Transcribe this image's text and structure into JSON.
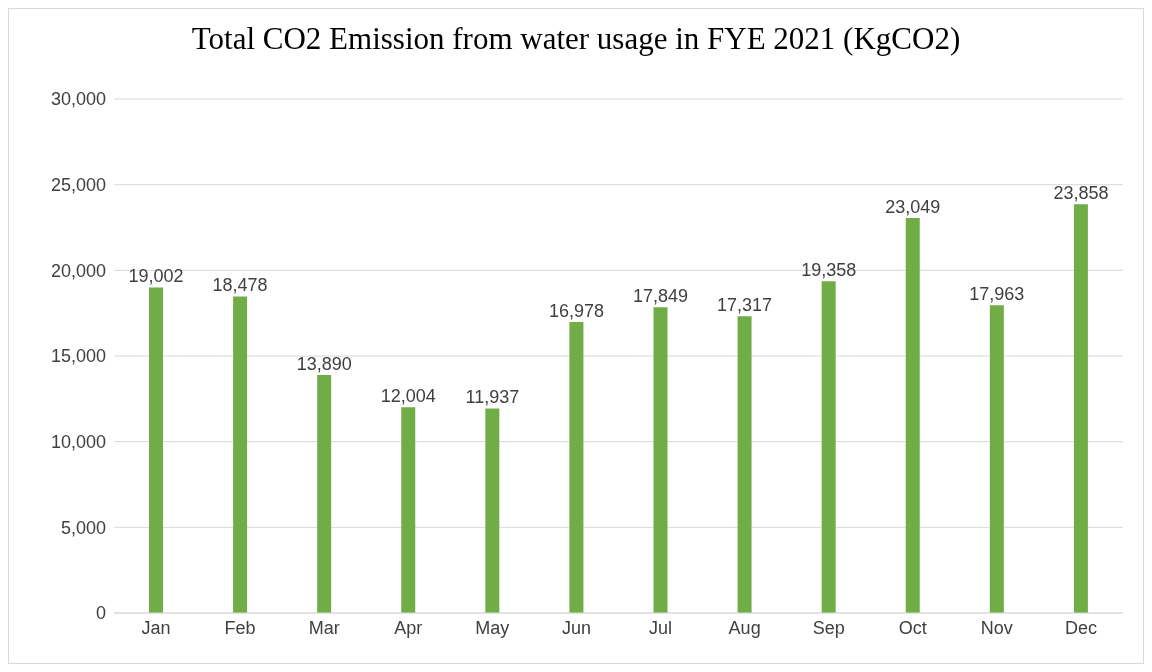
{
  "chart_data": {
    "type": "bar",
    "title": "Total CO2 Emission from water usage in FYE 2021 (KgCO2)",
    "categories": [
      "Jan",
      "Feb",
      "Mar",
      "Apr",
      "May",
      "Jun",
      "Jul",
      "Aug",
      "Sep",
      "Oct",
      "Nov",
      "Dec"
    ],
    "values": [
      19002,
      18478,
      13890,
      12004,
      11937,
      16978,
      17849,
      17317,
      19358,
      23049,
      17963,
      23858
    ],
    "color": "#70ad47",
    "ylim": [
      0,
      30000
    ],
    "yticks": [
      {
        "value": 0,
        "label": "0"
      },
      {
        "value": 5000,
        "label": "5,000"
      },
      {
        "value": 10000,
        "label": "10,000"
      },
      {
        "value": 15000,
        "label": "15,000"
      },
      {
        "value": 20000,
        "label": "20,000"
      },
      {
        "value": 25000,
        "label": "25,000"
      },
      {
        "value": 30000,
        "label": "30,000"
      }
    ],
    "value_labels": [
      "19,002",
      "18,478",
      "13,890",
      "12,004",
      "11,937",
      "16,978",
      "17,849",
      "17,317",
      "19,358",
      "23,049",
      "17,963",
      "23,858"
    ],
    "grid": "y"
  }
}
